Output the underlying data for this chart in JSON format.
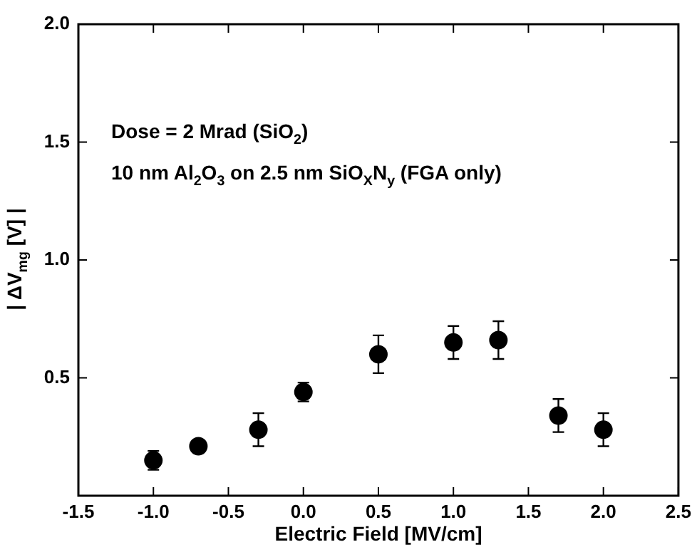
{
  "chart_data": {
    "type": "scatter",
    "xlabel": "Electric Field [MV/cm]",
    "ylabel": "| ΔV$_{mg}$ [V] |",
    "annotations": [
      "Dose = 2 Mrad (SiO$_{2}$)",
      "10 nm Al$_{2}$O$_{3}$ on 2.5 nm SiO$_{X}$N$_{y}$ (FGA only)"
    ],
    "x": [
      -1.0,
      -0.7,
      -0.3,
      0.0,
      0.5,
      1.0,
      1.3,
      1.7,
      2.0
    ],
    "series": [
      {
        "color": "#000000",
        "values": [
          0.15,
          0.21,
          0.28,
          0.44,
          0.6,
          0.65,
          0.66,
          0.34,
          0.28
        ],
        "errors": [
          0.04,
          null,
          0.07,
          0.04,
          0.08,
          0.07,
          0.08,
          0.07,
          0.07
        ]
      }
    ],
    "xlim": [
      -1.5,
      2.5
    ],
    "xticks": [
      {
        "value": -1.5,
        "label": "-1.5"
      },
      {
        "value": -1,
        "label": "-1.0"
      },
      {
        "value": -0.5,
        "label": "-0.5"
      },
      {
        "value": 0,
        "label": "0.0"
      },
      {
        "value": 0.5,
        "label": "0.5"
      },
      {
        "value": 1,
        "label": "1.0"
      },
      {
        "value": 1.5,
        "label": "1.5"
      },
      {
        "value": 2,
        "label": "2.0"
      },
      {
        "value": 2.5,
        "label": "2.5"
      }
    ],
    "ylim": [
      0,
      2
    ],
    "yticks": [
      {
        "value": 0.5,
        "label": "0.5"
      },
      {
        "value": 1,
        "label": "1.0"
      },
      {
        "value": 1.5,
        "label": "1.5"
      },
      {
        "value": 2,
        "label": "2.0"
      }
    ],
    "marker": "circle",
    "legend": false,
    "grid": false
  }
}
